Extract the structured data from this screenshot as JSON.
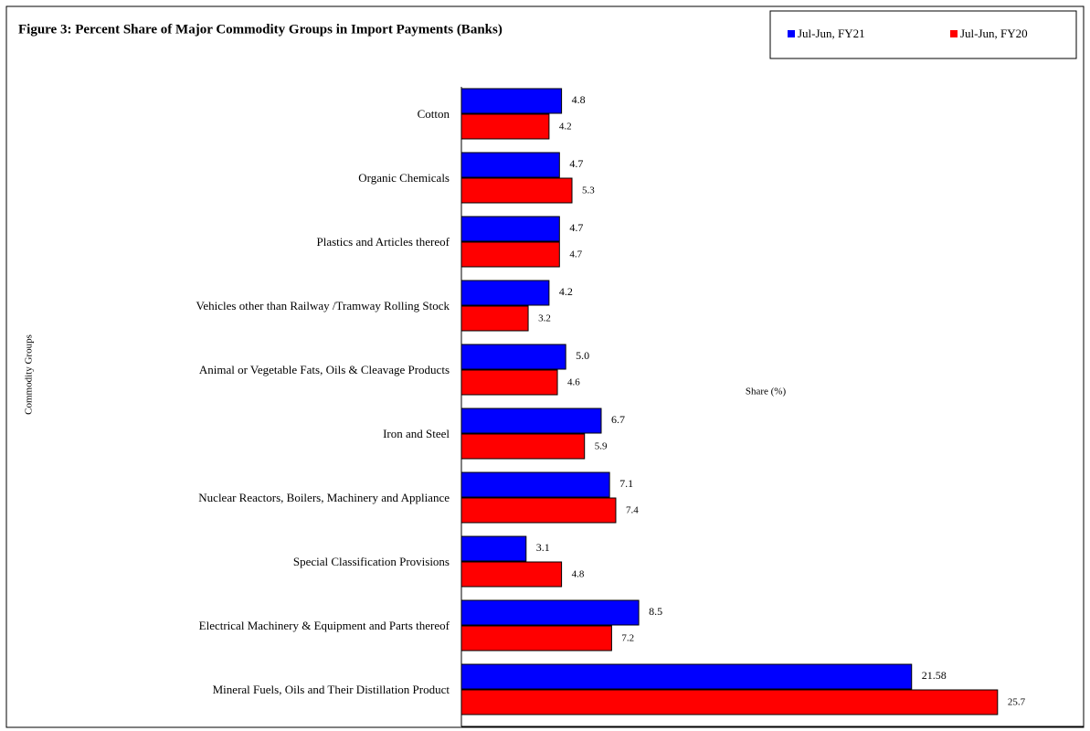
{
  "chart_data": {
    "type": "barh",
    "title": "Figure 3: Percent Share of Major Commodity  Groups  in Import  Payments  (Banks)",
    "x_label": "Share (%)",
    "y_label": "Commodity Groups",
    "categories": [
      "Cotton",
      "Organic Chemicals",
      "Plastics and Articles thereof",
      "Vehicles other than Railway /Tramway Rolling Stock",
      "Animal or Vegetable Fats, Oils & Cleavage Products",
      "Iron and Steel",
      "Nuclear Reactors, Boilers, Machinery and Appliance",
      "Special Classification Provisions",
      "Electrical Machinery & Equipment and Parts thereof",
      "Mineral Fuels, Oils and Their Distillation Product"
    ],
    "series": [
      {
        "name": "Jul-Jun, FY21",
        "color": "#0000ff",
        "values": [
          4.8,
          4.7,
          4.7,
          4.2,
          5.0,
          6.7,
          7.1,
          3.1,
          8.5,
          21.58
        ],
        "value_labels": [
          "4.8",
          "4.7",
          "4.7",
          "4.2",
          "5.0",
          "6.7",
          "7.1",
          "3.1",
          "8.5",
          "21.58"
        ]
      },
      {
        "name": "Jul-Jun, FY20",
        "color": "#ff0000",
        "values": [
          4.2,
          5.3,
          4.7,
          3.2,
          4.6,
          5.9,
          7.4,
          4.8,
          7.2,
          25.7
        ],
        "value_labels": [
          "4.2",
          "5.3",
          "4.7",
          "3.2",
          "4.6",
          "5.9",
          "7.4",
          "4.8",
          "7.2",
          "25.7"
        ]
      }
    ],
    "xlim": [
      0,
      30
    ],
    "legend": "top-right"
  }
}
